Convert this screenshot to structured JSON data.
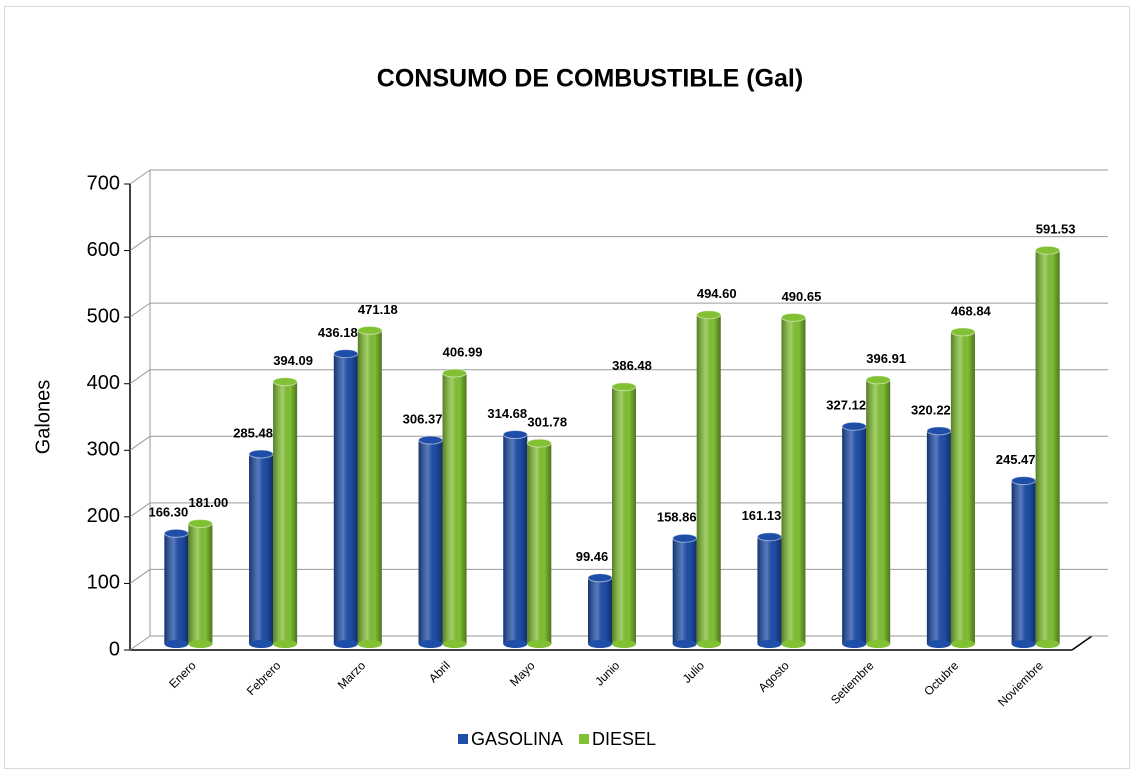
{
  "chart_data": {
    "type": "bar",
    "title": "CONSUMO DE COMBUSTIBLE (Gal)",
    "y_label": "Galones",
    "categories": [
      "Enero",
      "Febrero",
      "Marzo",
      "Abril",
      "Mayo",
      "Junio",
      "Julio",
      "Agosto",
      "Setiembre",
      "Octubre",
      "Noviembre"
    ],
    "series": [
      {
        "name": "GASOLINA",
        "color": "#1f4ea8",
        "values": [
          166.3,
          285.48,
          436.18,
          306.37,
          314.68,
          99.46,
          158.86,
          161.13,
          327.12,
          320.22,
          245.47
        ],
        "value_labels": [
          "166.30",
          "285.48",
          "436.18",
          "306.37",
          "314.68",
          "99.46",
          "158.86",
          "161.13",
          "327.12",
          "320.22",
          "245.47"
        ]
      },
      {
        "name": "DIESEL",
        "color": "#82c134",
        "values": [
          181.0,
          394.09,
          471.18,
          406.99,
          301.78,
          386.48,
          494.6,
          490.65,
          396.91,
          468.84,
          591.53
        ],
        "value_labels": [
          "181.00",
          "394.09",
          "471.18",
          "406.99",
          "301.78",
          "386.48",
          "494.60",
          "490.65",
          "396.91",
          "468.84",
          "591.53"
        ]
      }
    ],
    "ylim": [
      0,
      700
    ],
    "yticks": [
      0,
      100,
      200,
      300,
      400,
      500,
      600,
      700
    ],
    "grid": true,
    "legend": "bottom"
  }
}
